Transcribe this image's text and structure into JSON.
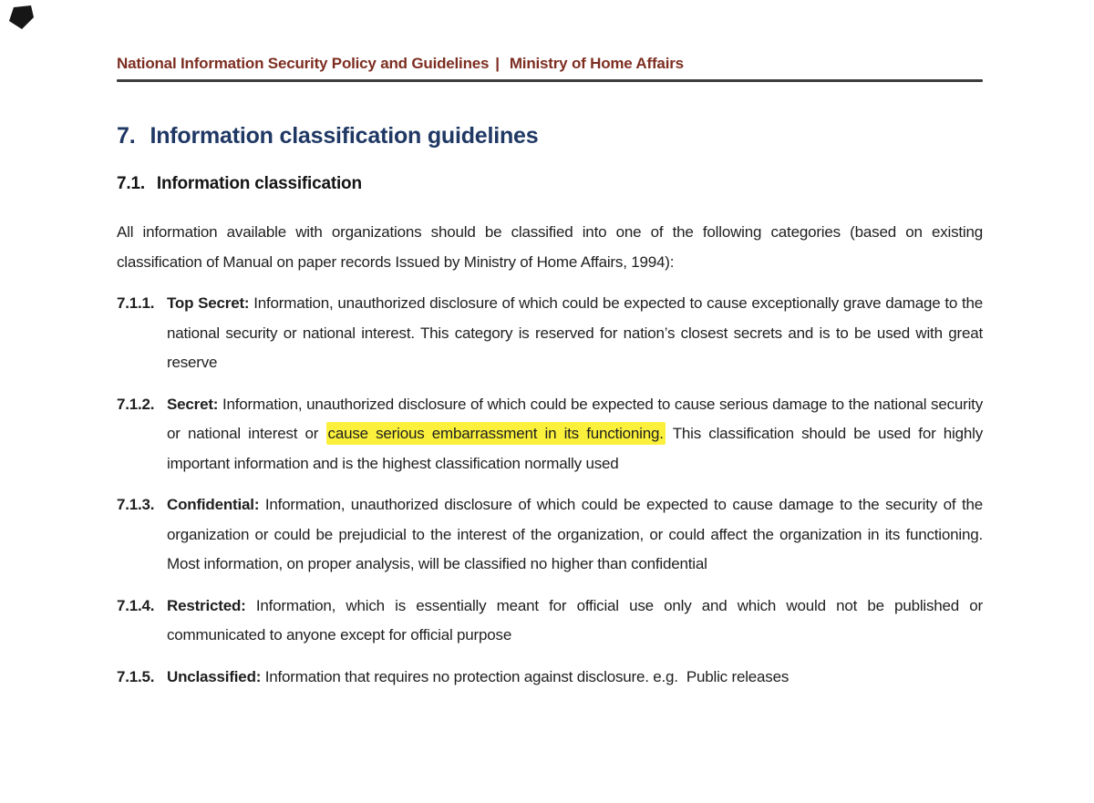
{
  "header": {
    "title": "National Information Security Policy and Guidelines",
    "separator": "|",
    "organization": "Ministry of Home Affairs"
  },
  "section_heading": {
    "number": "7.",
    "title": "Information classification guidelines"
  },
  "subsection_heading": {
    "number": "7.1.",
    "title": "Information classification"
  },
  "intro_paragraph": "All information available with organizations should be classified into one of the following categories (based on existing classification of Manual on paper records Issued by Ministry of Home Affairs, 1994):",
  "classification_items": [
    {
      "number": "7.1.1.",
      "term": "Top Secret:",
      "segments": [
        {
          "text": "Information, unauthorized disclosure of which could be expected to cause exceptionally grave damage to the national security or national interest. This category is reserved for nation’s closest secrets and is to be used with great reserve",
          "highlight": false
        }
      ]
    },
    {
      "number": "7.1.2.",
      "term": "Secret:",
      "segments": [
        {
          "text": "Information, unauthorized disclosure of which could be expected to cause serious damage to the national security or national interest or ",
          "highlight": false
        },
        {
          "text": "cause serious embarrassment in its functioning.",
          "highlight": true
        },
        {
          "text": " This classification should be used for highly important information and is the highest classification normally used",
          "highlight": false
        }
      ]
    },
    {
      "number": "7.1.3.",
      "term": "Confidential:",
      "segments": [
        {
          "text": "Information, unauthorized disclosure of which could be expected to cause damage to the security of the organization or could be prejudicial to the interest of the organization, or could affect the organization in its functioning. Most information, on proper analysis, will be classified no higher than confidential",
          "highlight": false
        }
      ]
    },
    {
      "number": "7.1.4.",
      "term": "Restricted:",
      "segments": [
        {
          "text": "Information, which is essentially meant for official use only and which would not be published or communicated to anyone except for official purpose",
          "highlight": false
        }
      ]
    },
    {
      "number": "7.1.5.",
      "term": "Unclassified:",
      "segments": [
        {
          "text": "Information that requires no protection against disclosure. e.g.  Public releases",
          "highlight": false
        }
      ]
    }
  ],
  "colors": {
    "header-maroon": "#7d2e21",
    "heading-navy": "#1f3864",
    "highlight-yellow": "#fbf13c",
    "rule-gray": "#3d3d3d",
    "body-text": "#1f1f1f"
  }
}
